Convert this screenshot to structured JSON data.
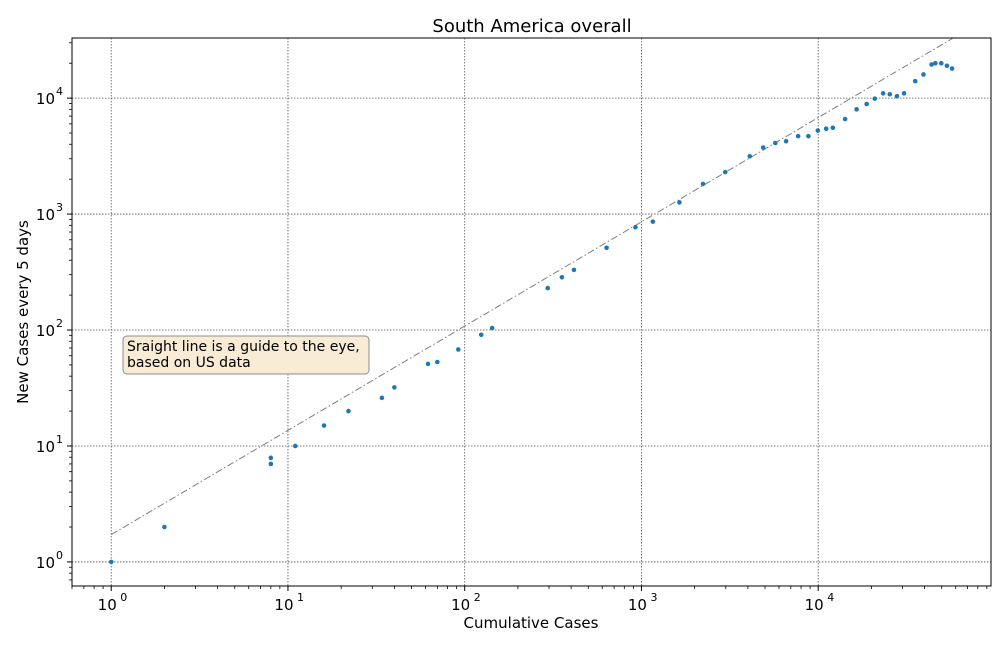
{
  "chart_data": {
    "type": "scatter",
    "title": "South America overall",
    "xlabel": "Cumulative Cases",
    "ylabel": "New Cases every 5 days",
    "xscale": "log",
    "yscale": "log",
    "xlim": [
      0.6,
      95000
    ],
    "ylim": [
      0.62,
      33000
    ],
    "grid": true,
    "x_ticks": [
      {
        "base": "10",
        "exp": "0",
        "value": 1
      },
      {
        "base": "10",
        "exp": "1",
        "value": 10
      },
      {
        "base": "10",
        "exp": "2",
        "value": 100
      },
      {
        "base": "10",
        "exp": "3",
        "value": 1000
      },
      {
        "base": "10",
        "exp": "4",
        "value": 10000
      }
    ],
    "y_ticks": [
      {
        "base": "10",
        "exp": "0",
        "value": 1
      },
      {
        "base": "10",
        "exp": "1",
        "value": 10
      },
      {
        "base": "10",
        "exp": "2",
        "value": 100
      },
      {
        "base": "10",
        "exp": "3",
        "value": 1000
      },
      {
        "base": "10",
        "exp": "4",
        "value": 10000
      }
    ],
    "marker_color": "#1f77b4",
    "guide_color": "#7f7f7f",
    "guide_line": {
      "x": [
        1,
        58000
      ],
      "y": [
        1.72,
        33000
      ]
    },
    "annotation": {
      "lines": [
        "Sraight line is a guide to the eye,",
        "based on US data"
      ],
      "box_fill": "#f8ecd6",
      "box_edge": "#8c8c8c"
    },
    "points": {
      "x": [
        1,
        2,
        8,
        8,
        11,
        16,
        22,
        34,
        40,
        62,
        70,
        92,
        124,
        143,
        295,
        355,
        415,
        635,
        925,
        1160,
        1640,
        2230,
        2980,
        4100,
        4880,
        5720,
        6580,
        7700,
        8800,
        9950,
        11100,
        12100,
        14200,
        16500,
        18800,
        20900,
        23300,
        25400,
        27900,
        30600,
        35400,
        39400,
        43800,
        46000,
        49700,
        53500,
        57200
      ],
      "y": [
        1,
        2,
        7.9,
        7,
        10,
        15,
        20,
        26,
        32,
        51,
        53,
        68,
        91,
        104,
        230,
        285,
        330,
        512,
        770,
        860,
        1260,
        1820,
        2300,
        3150,
        3750,
        4100,
        4250,
        4700,
        4700,
        5250,
        5450,
        5550,
        6600,
        8000,
        8900,
        9900,
        11000,
        10800,
        10400,
        11000,
        14000,
        16000,
        19500,
        20000,
        20000,
        19000,
        18000
      ]
    }
  }
}
